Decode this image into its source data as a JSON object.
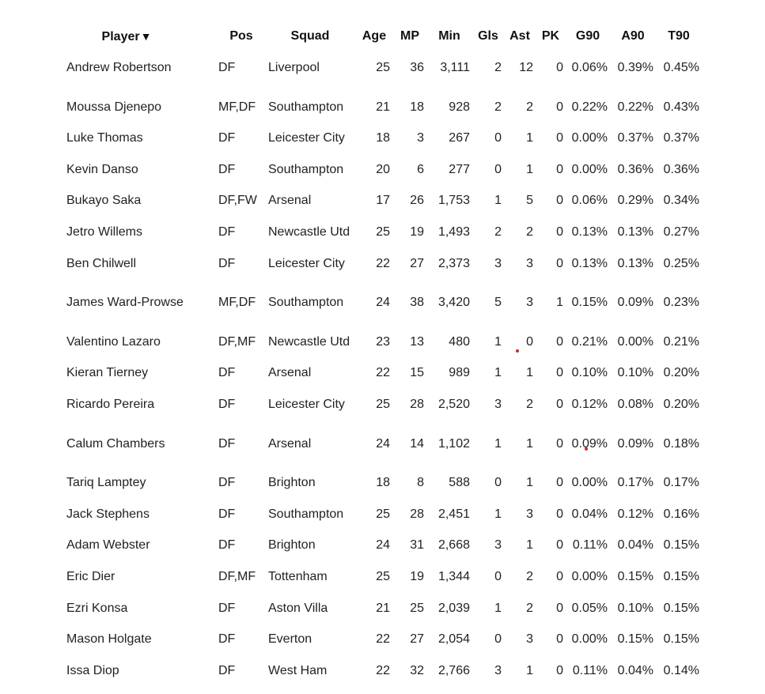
{
  "table": {
    "headers": {
      "player": "Player",
      "sort_indicator": "▼",
      "pos": "Pos",
      "squad": "Squad",
      "age": "Age",
      "mp": "MP",
      "min": "Min",
      "gls": "Gls",
      "ast": "Ast",
      "pk": "PK",
      "g90": "G90",
      "a90": "A90",
      "t90": "T90"
    },
    "rows": [
      {
        "player": "Andrew Robertson",
        "pos": "DF",
        "squad": "Liverpool",
        "age": "25",
        "mp": "36",
        "min": "3,111",
        "gls": "2",
        "ast": "12",
        "pk": "0",
        "g90": "0.06%",
        "a90": "0.39%",
        "t90": "0.45%"
      },
      {
        "player": "Moussa Djenepo",
        "pos": "MF,DF",
        "squad": "Southampton",
        "age": "21",
        "mp": "18",
        "min": "928",
        "gls": "2",
        "ast": "2",
        "pk": "0",
        "g90": "0.22%",
        "a90": "0.22%",
        "t90": "0.43%"
      },
      {
        "player": "Luke Thomas",
        "pos": "DF",
        "squad": "Leicester City",
        "age": "18",
        "mp": "3",
        "min": "267",
        "gls": "0",
        "ast": "1",
        "pk": "0",
        "g90": "0.00%",
        "a90": "0.37%",
        "t90": "0.37%"
      },
      {
        "player": "Kevin Danso",
        "pos": "DF",
        "squad": "Southampton",
        "age": "20",
        "mp": "6",
        "min": "277",
        "gls": "0",
        "ast": "1",
        "pk": "0",
        "g90": "0.00%",
        "a90": "0.36%",
        "t90": "0.36%"
      },
      {
        "player": "Bukayo Saka",
        "pos": "DF,FW",
        "squad": "Arsenal",
        "age": "17",
        "mp": "26",
        "min": "1,753",
        "gls": "1",
        "ast": "5",
        "pk": "0",
        "g90": "0.06%",
        "a90": "0.29%",
        "t90": "0.34%"
      },
      {
        "player": "Jetro Willems",
        "pos": "DF",
        "squad": "Newcastle Utd",
        "age": "25",
        "mp": "19",
        "min": "1,493",
        "gls": "2",
        "ast": "2",
        "pk": "0",
        "g90": "0.13%",
        "a90": "0.13%",
        "t90": "0.27%"
      },
      {
        "player": "Ben Chilwell",
        "pos": "DF",
        "squad": "Leicester City",
        "age": "22",
        "mp": "27",
        "min": "2,373",
        "gls": "3",
        "ast": "3",
        "pk": "0",
        "g90": "0.13%",
        "a90": "0.13%",
        "t90": "0.25%"
      },
      {
        "player": "James Ward-Prowse",
        "pos": "MF,DF",
        "squad": "Southampton",
        "age": "24",
        "mp": "38",
        "min": "3,420",
        "gls": "5",
        "ast": "3",
        "pk": "1",
        "g90": "0.15%",
        "a90": "0.09%",
        "t90": "0.23%"
      },
      {
        "player": "Valentino Lazaro",
        "pos": "DF,MF",
        "squad": "Newcastle Utd",
        "age": "23",
        "mp": "13",
        "min": "480",
        "gls": "1",
        "ast": "0",
        "pk": "0",
        "g90": "0.21%",
        "a90": "0.00%",
        "t90": "0.21%"
      },
      {
        "player": "Kieran Tierney",
        "pos": "DF",
        "squad": "Arsenal",
        "age": "22",
        "mp": "15",
        "min": "989",
        "gls": "1",
        "ast": "1",
        "pk": "0",
        "g90": "0.10%",
        "a90": "0.10%",
        "t90": "0.20%"
      },
      {
        "player": "Ricardo Pereira",
        "pos": "DF",
        "squad": "Leicester City",
        "age": "25",
        "mp": "28",
        "min": "2,520",
        "gls": "3",
        "ast": "2",
        "pk": "0",
        "g90": "0.12%",
        "a90": "0.08%",
        "t90": "0.20%"
      },
      {
        "player": "Calum Chambers",
        "pos": "DF",
        "squad": "Arsenal",
        "age": "24",
        "mp": "14",
        "min": "1,102",
        "gls": "1",
        "ast": "1",
        "pk": "0",
        "g90": "0.09%",
        "a90": "0.09%",
        "t90": "0.18%"
      },
      {
        "player": "Tariq Lamptey",
        "pos": "DF",
        "squad": "Brighton",
        "age": "18",
        "mp": "8",
        "min": "588",
        "gls": "0",
        "ast": "1",
        "pk": "0",
        "g90": "0.00%",
        "a90": "0.17%",
        "t90": "0.17%"
      },
      {
        "player": "Jack Stephens",
        "pos": "DF",
        "squad": "Southampton",
        "age": "25",
        "mp": "28",
        "min": "2,451",
        "gls": "1",
        "ast": "3",
        "pk": "0",
        "g90": "0.04%",
        "a90": "0.12%",
        "t90": "0.16%"
      },
      {
        "player": "Adam Webster",
        "pos": "DF",
        "squad": "Brighton",
        "age": "24",
        "mp": "31",
        "min": "2,668",
        "gls": "3",
        "ast": "1",
        "pk": "0",
        "g90": "0.11%",
        "a90": "0.04%",
        "t90": "0.15%"
      },
      {
        "player": "Eric Dier",
        "pos": "DF,MF",
        "squad": "Tottenham",
        "age": "25",
        "mp": "19",
        "min": "1,344",
        "gls": "0",
        "ast": "2",
        "pk": "0",
        "g90": "0.00%",
        "a90": "0.15%",
        "t90": "0.15%"
      },
      {
        "player": "Ezri Konsa",
        "pos": "DF",
        "squad": "Aston Villa",
        "age": "21",
        "mp": "25",
        "min": "2,039",
        "gls": "1",
        "ast": "2",
        "pk": "0",
        "g90": "0.05%",
        "a90": "0.10%",
        "t90": "0.15%"
      },
      {
        "player": "Mason Holgate",
        "pos": "DF",
        "squad": "Everton",
        "age": "22",
        "mp": "27",
        "min": "2,054",
        "gls": "0",
        "ast": "3",
        "pk": "0",
        "g90": "0.00%",
        "a90": "0.15%",
        "t90": "0.15%"
      },
      {
        "player": "Issa Diop",
        "pos": "DF",
        "squad": "West Ham",
        "age": "22",
        "mp": "32",
        "min": "2,766",
        "gls": "3",
        "ast": "1",
        "pk": "0",
        "g90": "0.11%",
        "a90": "0.04%",
        "t90": "0.14%"
      }
    ]
  },
  "colors": {
    "text": "#222222",
    "header_text": "#111111",
    "marker_dot": "#d0262a"
  }
}
